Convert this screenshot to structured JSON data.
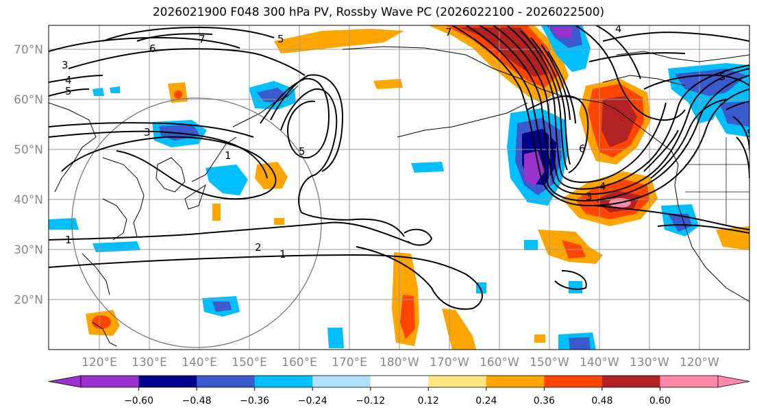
{
  "title": "2026021900 F048 300 hPa PV, Rossby Wave PC (2026022100 - 2026022500)",
  "lat_labels": [
    "70°N",
    "60°N",
    "50°N",
    "40°N",
    "30°N",
    "20°N"
  ],
  "lon_labels": [
    "120°E",
    "130°E",
    "140°E",
    "150°E",
    "160°E",
    "170°E",
    "180°W",
    "170°W",
    "160°W",
    "150°W",
    "140°W",
    "130°W",
    "120°W"
  ],
  "colorbar": {
    "ticks": [
      "−0.60",
      "−0.48",
      "−0.36",
      "−0.24",
      "−0.12",
      "0.12",
      "0.24",
      "0.36",
      "0.48",
      "0.60"
    ],
    "colors": [
      "#9932cc",
      "#00008b",
      "#3a5acd",
      "#00bfff",
      "#b0e0ff",
      "#ffffff",
      "#ffe680",
      "#ffa500",
      "#ff4500",
      "#b22222",
      "#ff88aa"
    ]
  },
  "contour_labels": [
    "1",
    "2",
    "3",
    "4",
    "5",
    "6",
    "7"
  ],
  "map_labels": {
    "c1": "3",
    "c2": "4",
    "c3": "5",
    "c4": "6",
    "c5": "7",
    "c6": "5",
    "c7": "3",
    "c8": "1",
    "c9": "5",
    "c10": "1",
    "c11": "2",
    "c12": "1",
    "c13": "5",
    "c14": "3",
    "c15": "4",
    "c16": "6",
    "c17": "5",
    "c18": "4",
    "c19": "7"
  }
}
